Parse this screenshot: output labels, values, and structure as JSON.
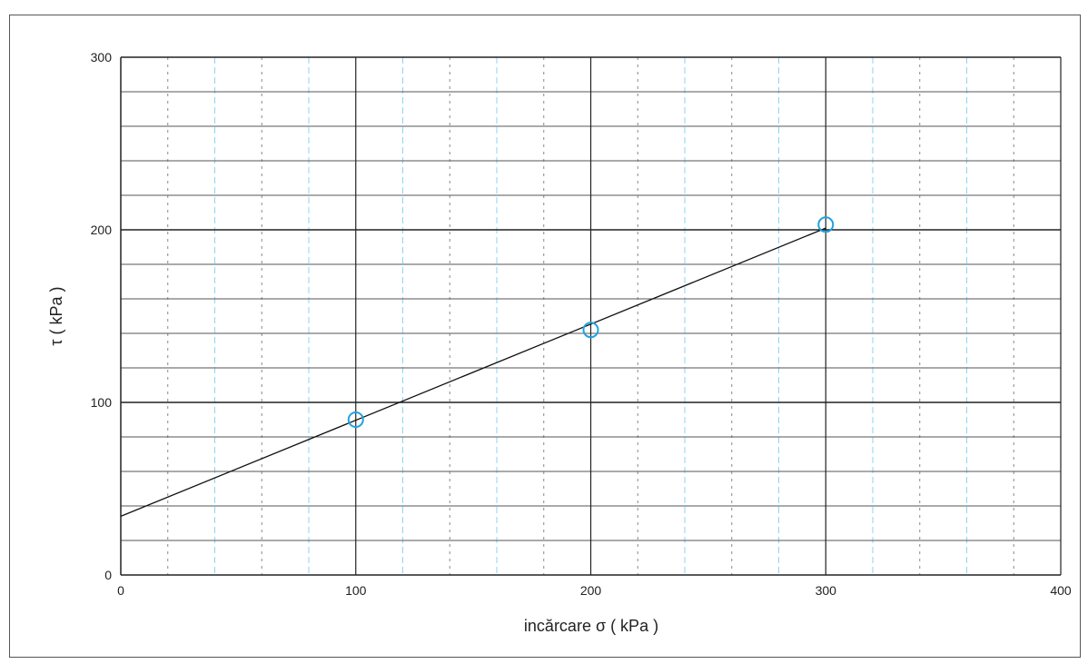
{
  "chart_data": {
    "type": "scatter",
    "title": "",
    "xlabel": "incărcare σ  ( kPa )",
    "ylabel": "τ ( kPa )",
    "xlim": [
      0,
      400
    ],
    "ylim": [
      0,
      300
    ],
    "x_ticks": [
      0,
      100,
      200,
      300,
      400
    ],
    "y_ticks": [
      0,
      100,
      200,
      300
    ],
    "grid": true,
    "legend": "none",
    "points": [
      {
        "x": 100,
        "y": 90
      },
      {
        "x": 200,
        "y": 142
      },
      {
        "x": 300,
        "y": 203
      }
    ],
    "trendline": {
      "x": [
        0,
        300
      ],
      "y": [
        34,
        201
      ]
    },
    "colors": {
      "points": "#1fa3e0",
      "line": "#111111",
      "major_grid": "#222222",
      "minor_grid_blue": "#8fd3f5"
    }
  }
}
